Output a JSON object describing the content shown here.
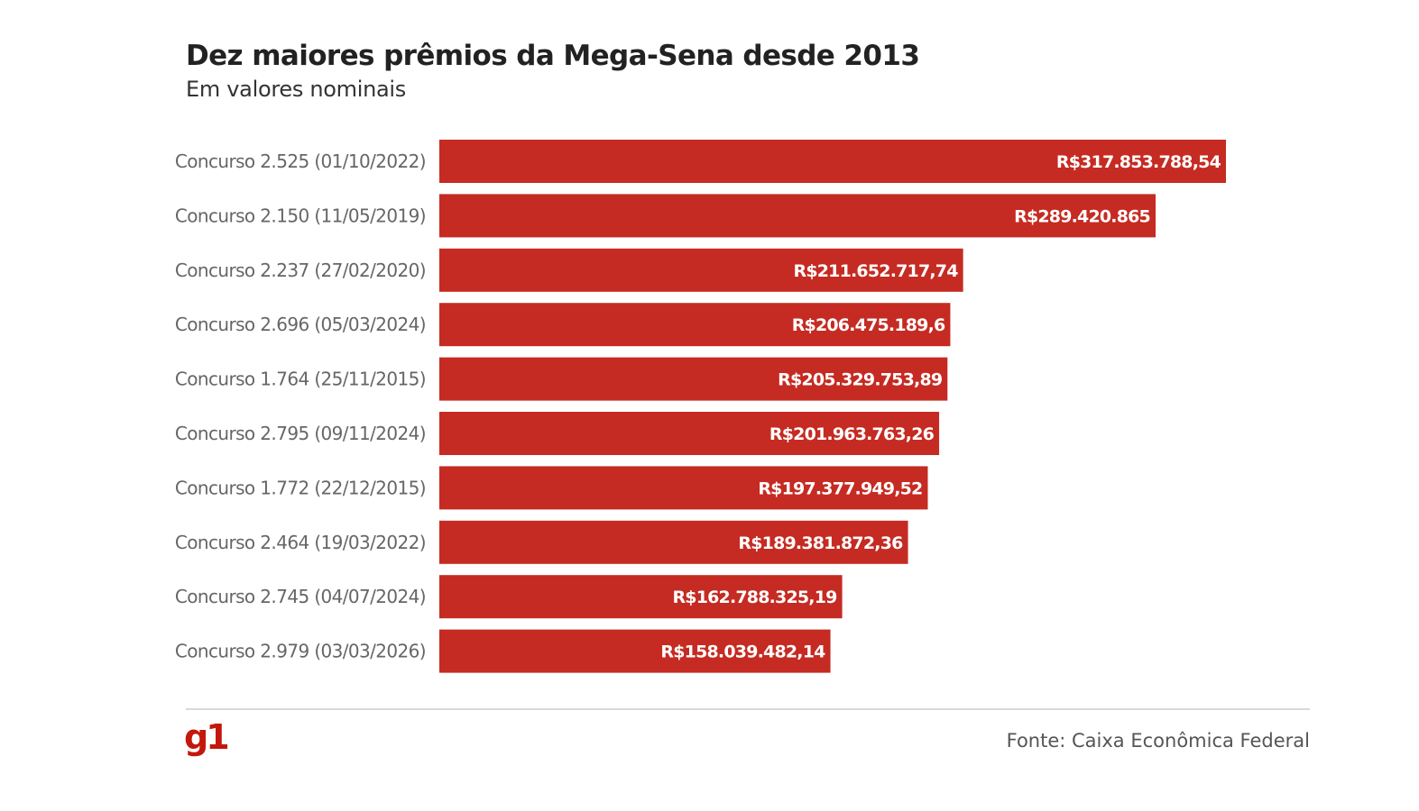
{
  "header": {
    "title": "Dez maiores prêmios da Mega-Sena desde 2013",
    "subtitle": "Em valores nominais"
  },
  "footer": {
    "logo": "g1",
    "source": "Fonte: Caixa Econômica Federal"
  },
  "colors": {
    "bar": "#c52b22",
    "bar_label": "#ffffff",
    "category_label": "#666666",
    "logo": "#c4170c"
  },
  "chart_data": {
    "type": "bar",
    "orientation": "horizontal",
    "title": "Dez maiores prêmios da Mega-Sena desde 2013",
    "subtitle": "Em valores nominais",
    "xlabel": "",
    "ylabel": "",
    "unit": "R$",
    "xlim": [
      0,
      317853788.54
    ],
    "grid": false,
    "legend": "none",
    "categories": [
      "Concurso 2.525 (01/10/2022)",
      "Concurso 2.150 (11/05/2019)",
      "Concurso 2.237 (27/02/2020)",
      "Concurso 2.696 (05/03/2024)",
      "Concurso 1.764 (25/11/2015)",
      "Concurso 2.795 (09/11/2024)",
      "Concurso 1.772 (22/12/2015)",
      "Concurso 2.464 (19/03/2022)",
      "Concurso 2.745 (04/07/2024)",
      "Concurso 2.979 (03/03/2026)"
    ],
    "values": [
      317853788.54,
      289420865,
      211652717.74,
      206475189.6,
      205329753.89,
      201963763.26,
      197377949.52,
      189381872.36,
      162788325.19,
      158039482.14
    ],
    "data_labels": [
      "R$317.853.788,54",
      "R$289.420.865",
      "R$211.652.717,74",
      "R$206.475.189,6",
      "R$205.329.753,89",
      "R$201.963.763,26",
      "R$197.377.949,52",
      "R$189.381.872,36",
      "R$162.788.325,19",
      "R$158.039.482,14"
    ],
    "source": "Fonte: Caixa Econômica Federal"
  }
}
